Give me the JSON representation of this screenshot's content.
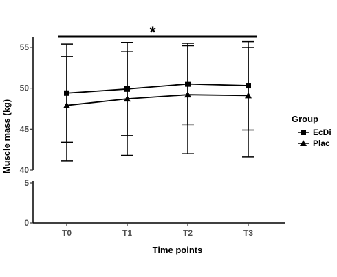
{
  "chart_data": {
    "type": "line",
    "xlabel": "Time points",
    "ylabel": "Muscle mass (kg)",
    "categories": [
      "T0",
      "T1",
      "T2",
      "T3"
    ],
    "axis_break": {
      "lower_range": [
        0,
        5
      ],
      "upper_range": [
        40,
        56
      ]
    },
    "yticks_lower": [
      0,
      5
    ],
    "yticks_upper": [
      40,
      45,
      50,
      55
    ],
    "legend": {
      "title": "Group",
      "placement": "right"
    },
    "series": [
      {
        "name": "EcDi",
        "marker": "square",
        "values": [
          49.4,
          49.9,
          50.5,
          50.3
        ],
        "upper": [
          55.4,
          55.6,
          55.5,
          55.7
        ],
        "lower": [
          43.4,
          44.2,
          45.5,
          44.9
        ]
      },
      {
        "name": "Plac",
        "marker": "triangle",
        "values": [
          47.9,
          48.7,
          49.2,
          49.1
        ],
        "upper": [
          53.9,
          54.5,
          55.2,
          55.0
        ],
        "lower": [
          41.1,
          41.8,
          42.0,
          41.6
        ]
      }
    ],
    "annotation": {
      "text": "*",
      "span": [
        "T0",
        "T3"
      ]
    }
  }
}
